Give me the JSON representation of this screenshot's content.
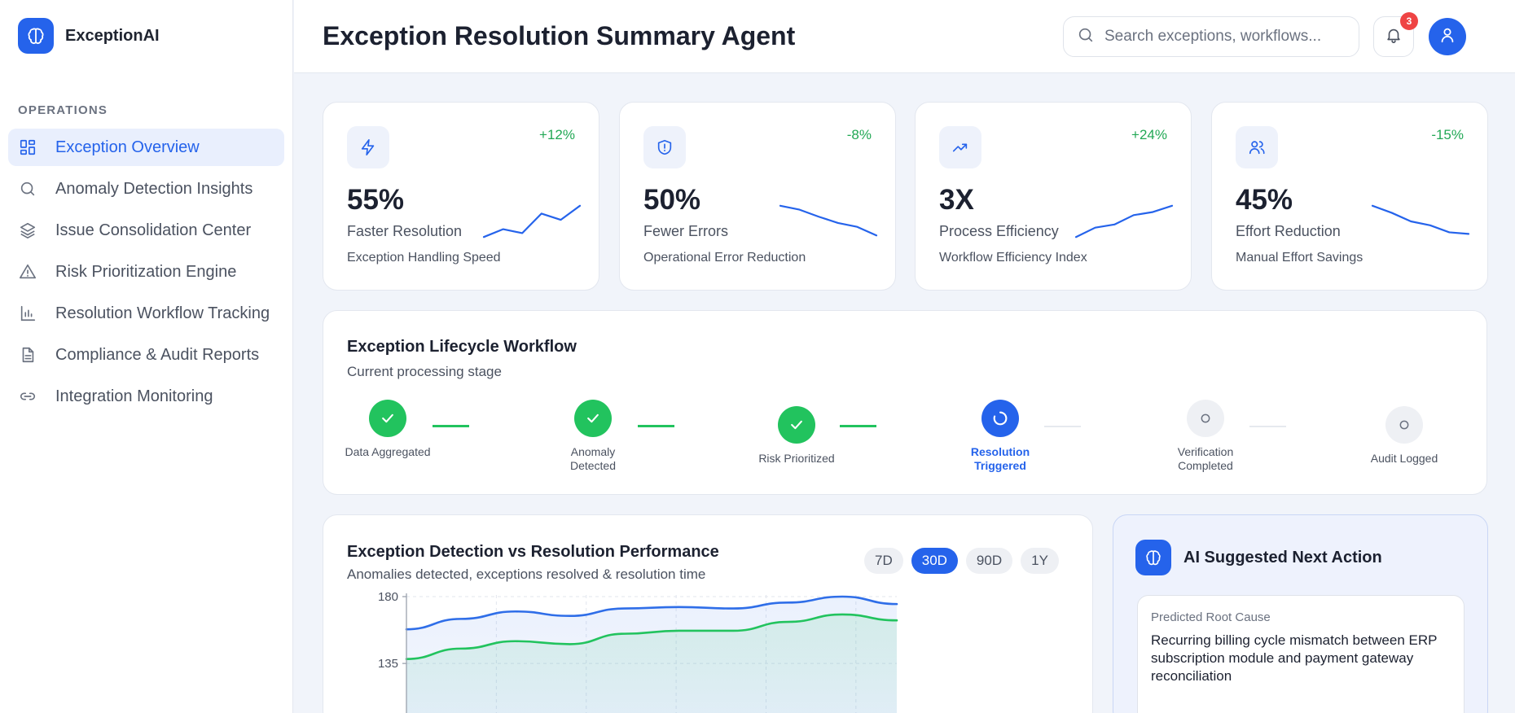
{
  "app": {
    "brand": "ExceptionAI"
  },
  "sidebar": {
    "section_label": "OPERATIONS",
    "items": [
      {
        "label": "Exception Overview",
        "icon": "grid-icon",
        "active": true
      },
      {
        "label": "Anomaly Detection Insights",
        "icon": "search-icon",
        "active": false
      },
      {
        "label": "Issue Consolidation Center",
        "icon": "layers-icon",
        "active": false
      },
      {
        "label": "Risk Prioritization Engine",
        "icon": "warning-icon",
        "active": false
      },
      {
        "label": "Resolution Workflow Tracking",
        "icon": "bar-chart-icon",
        "active": false
      },
      {
        "label": "Compliance & Audit Reports",
        "icon": "document-icon",
        "active": false
      },
      {
        "label": "Integration Monitoring",
        "icon": "link-icon",
        "active": false
      }
    ]
  },
  "header": {
    "title": "Exception Resolution Summary Agent",
    "search_placeholder": "Search exceptions, workflows...",
    "notification_count": "3"
  },
  "kpis": [
    {
      "value": "55%",
      "label": "Faster Resolution",
      "sub": "Exception Handling Speed",
      "delta": "+12%",
      "icon": "bolt-icon",
      "trend": [
        2,
        3,
        2.5,
        5,
        4.2,
        6
      ]
    },
    {
      "value": "50%",
      "label": "Fewer Errors",
      "sub": "Operational Error Reduction",
      "delta": "-8%",
      "icon": "shield-alert-icon",
      "trend": [
        6,
        5.5,
        4.6,
        3.8,
        3.3,
        2.2
      ]
    },
    {
      "value": "3X",
      "label": "Process Efficiency",
      "sub": "Workflow Efficiency Index",
      "delta": "+24%",
      "icon": "trend-up-icon",
      "trend": [
        2,
        3.2,
        3.6,
        4.8,
        5.2,
        6
      ]
    },
    {
      "value": "45%",
      "label": "Effort Reduction",
      "sub": "Manual Effort Savings",
      "delta": "-15%",
      "icon": "users-icon",
      "trend": [
        6,
        5.1,
        4.0,
        3.5,
        2.6,
        2.4
      ]
    }
  ],
  "workflow": {
    "title": "Exception Lifecycle Workflow",
    "subtitle": "Current processing stage",
    "steps": [
      {
        "label": "Data Aggregated",
        "status": "done"
      },
      {
        "label": "Anomaly Detected",
        "status": "done"
      },
      {
        "label": "Risk Prioritized",
        "status": "done"
      },
      {
        "label": "Resolution Triggered",
        "status": "active"
      },
      {
        "label": "Verification Completed",
        "status": "pending"
      },
      {
        "label": "Audit Logged",
        "status": "pending"
      }
    ]
  },
  "performance": {
    "title": "Exception Detection vs Resolution Performance",
    "subtitle": "Anomalies detected, exceptions resolved & resolution time",
    "ranges": [
      {
        "label": "7D",
        "active": false
      },
      {
        "label": "30D",
        "active": true
      },
      {
        "label": "90D",
        "active": false
      },
      {
        "label": "1Y",
        "active": false
      }
    ]
  },
  "chart_data": {
    "type": "area",
    "ylim": [
      100,
      180
    ],
    "y_ticks": [
      "180",
      "135"
    ],
    "grid": true,
    "series": [
      {
        "values": [
          158,
          165,
          170,
          167,
          172,
          173,
          172,
          176,
          180,
          175
        ]
      },
      {
        "values": [
          138,
          145,
          150,
          148,
          155,
          157,
          157,
          163,
          168,
          164
        ]
      }
    ],
    "colors": [
      "#2f6ee8",
      "#22c35e"
    ]
  },
  "ai_action": {
    "title": "AI Suggested Next Action",
    "inner_label": "Predicted Root Cause",
    "inner_text": "Recurring billing cycle mismatch between ERP subscription module and payment gateway reconciliation"
  },
  "colors": {
    "accent": "#2563eb",
    "success": "#22c35e",
    "danger": "#ef4444"
  }
}
